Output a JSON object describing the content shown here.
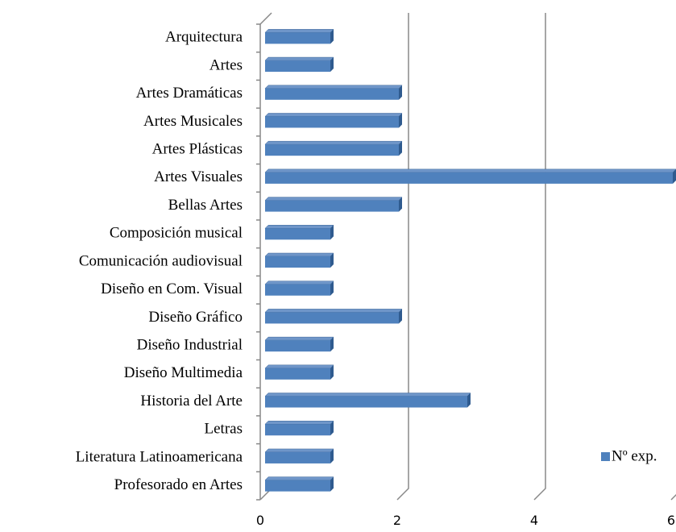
{
  "chart_data": {
    "type": "bar",
    "orientation": "horizontal",
    "categories": [
      "Arquitectura",
      "Artes",
      "Artes Dramáticas",
      "Artes Musicales",
      "Artes Plásticas",
      "Artes Visuales",
      "Bellas Artes",
      "Composición musical",
      "Comunicación audiovisual",
      "Diseño en Com. Visual",
      "Diseño Gráfico",
      "Diseño Industrial",
      "Diseño Multimedia",
      "Historia del Arte",
      "Letras",
      "Literatura Latinoamericana",
      "Profesorado en Artes"
    ],
    "series": [
      {
        "name": "Nº exp.",
        "color": "#4f81bd",
        "values": [
          1,
          1,
          2,
          2,
          2,
          6,
          2,
          1,
          1,
          1,
          2,
          1,
          1,
          3,
          1,
          1,
          1
        ]
      }
    ],
    "xlim": [
      0,
      6
    ],
    "xticks": [
      0,
      2,
      4,
      6
    ],
    "grid": true,
    "legend": "bottom-right"
  }
}
